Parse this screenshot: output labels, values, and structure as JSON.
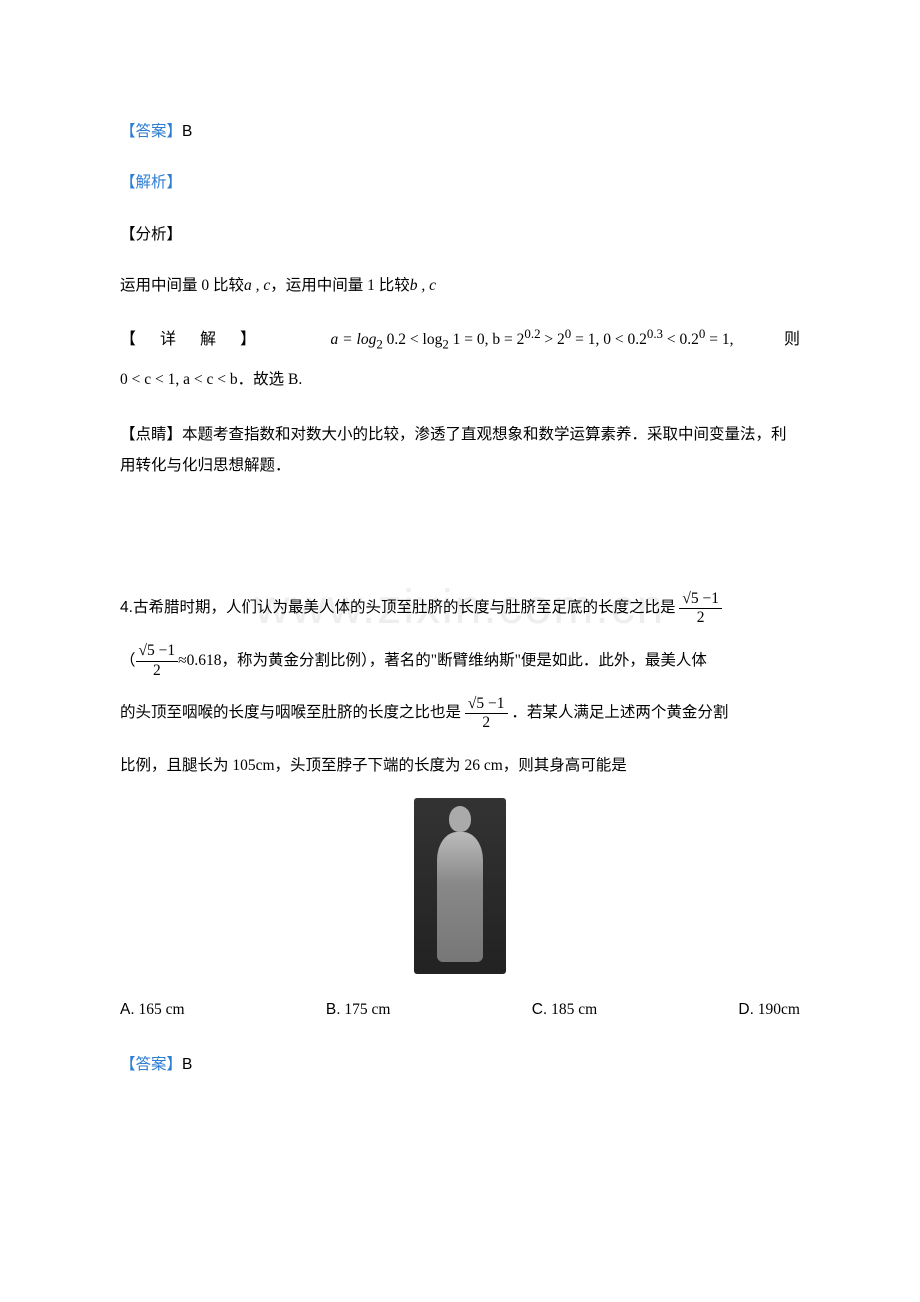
{
  "q3": {
    "answer_label": "【答案】",
    "answer_value": "B",
    "analysis_label": "【解析】",
    "fenxi_label": "【分析】",
    "fenxi_text_1": "运用中间量 0 比较",
    "fenxi_ac": "a , c",
    "fenxi_text_2": "，运用中间量 1 比较",
    "fenxi_bc": "b , c",
    "detail_label": "【详解】",
    "detail_math_a": "a = log",
    "detail_math_a2": " 0.2 < log",
    "detail_math_a3": " 1 = 0,  b = 2",
    "detail_math_a4": " > 2",
    "detail_math_a5": " = 1,  0 < 0.2",
    "detail_math_a6": " < 0.2",
    "detail_math_a7": " = 1,",
    "detail_math_then": "则",
    "detail_math_b": "0 < c < 1, a < c < b",
    "detail_conclusion": "．故选 B.",
    "dianjing_label": "【点睛】",
    "dianjing_text": "本题考查指数和对数大小的比较，渗透了直观想象和数学运算素养．采取中间变量法，利用转化与化归思想解题．",
    "sub_2": "2",
    "sup_02": "0.2",
    "sup_0": "0",
    "sup_03": "0.3"
  },
  "watermark": "www.zixin.com.cn",
  "q4": {
    "num": "4.",
    "text_1": "古希腊时期，人们认为最美人体的头顶至肚脐的长度与肚脐至足底的长度之比是",
    "frac_num": "√5 −1",
    "frac_den": "2",
    "text_2a": "（",
    "text_2b": "≈0.618，称为黄金分割比例），著名的\"断臂维纳斯\"便是如此．此外，最美人体",
    "text_3a": "的头顶至咽喉的长度与咽喉至肚脐的长度之比也是",
    "text_3b": "．若某人满足上述两个黄金分割",
    "text_4": "比例，且腿长为 105cm，头顶至脖子下端的长度为 26 cm，则其身高可能是",
    "options": [
      {
        "label": "A.",
        "text": "165 cm"
      },
      {
        "label": "B.",
        "text": "175 cm"
      },
      {
        "label": "C.",
        "text": "185 cm"
      },
      {
        "label": "D.",
        "text": "190cm"
      }
    ],
    "answer_label": "【答案】",
    "answer_value": "B"
  }
}
